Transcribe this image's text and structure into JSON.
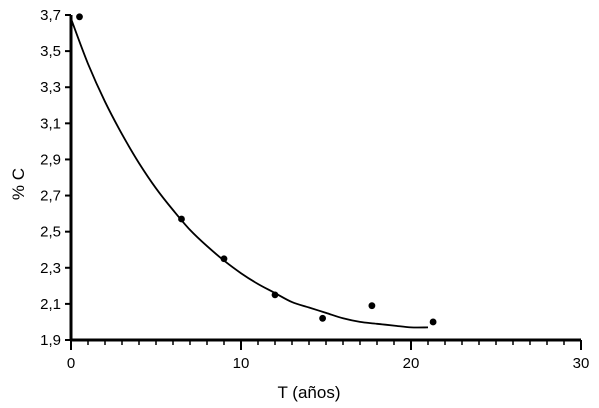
{
  "chart_data": {
    "type": "scatter",
    "title": "",
    "xlabel": "T (años)",
    "ylabel": "% C",
    "xlim": [
      0,
      30
    ],
    "ylim": [
      1.9,
      3.7
    ],
    "x_ticks": [
      0,
      10,
      20,
      30
    ],
    "x_tick_labels": [
      "0",
      "10",
      "20",
      "30"
    ],
    "x_minor_step": 1,
    "y_ticks": [
      1.9,
      2.1,
      2.3,
      2.5,
      2.7,
      2.9,
      3.1,
      3.3,
      3.5,
      3.7
    ],
    "y_tick_labels": [
      "1,9",
      "2,1",
      "2,3",
      "2,5",
      "2,7",
      "2,9",
      "3,1",
      "3,3",
      "3,5",
      "3,7"
    ],
    "grid": false,
    "series": [
      {
        "type": "scatter",
        "x": [
          0.5,
          6.5,
          9.0,
          12.0,
          14.8,
          17.7,
          21.3
        ],
        "y": [
          3.69,
          2.57,
          2.35,
          2.15,
          2.02,
          2.09,
          2.0
        ]
      },
      {
        "type": "line",
        "x": [
          0,
          1,
          2,
          3,
          4,
          5,
          6,
          7,
          8,
          9,
          10,
          11,
          12,
          13,
          14,
          15,
          16,
          17,
          18,
          19,
          20,
          21
        ],
        "y": [
          3.68,
          3.43,
          3.22,
          3.04,
          2.88,
          2.74,
          2.62,
          2.51,
          2.42,
          2.34,
          2.27,
          2.21,
          2.16,
          2.11,
          2.08,
          2.05,
          2.02,
          2.0,
          1.99,
          1.98,
          1.97,
          1.97
        ]
      }
    ],
    "colors": {
      "marks": "#000000",
      "background": "#ffffff"
    }
  }
}
